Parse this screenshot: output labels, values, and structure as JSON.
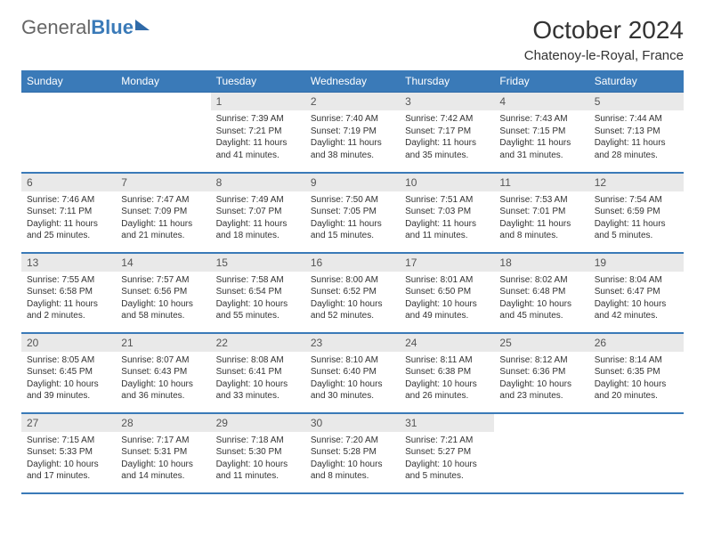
{
  "brand": {
    "word1": "General",
    "word2": "Blue"
  },
  "title": "October 2024",
  "location": "Chatenoy-le-Royal, France",
  "colors": {
    "header_bg": "#3a7ab8",
    "header_text": "#ffffff",
    "daynum_bg": "#e9e9e9",
    "row_border": "#3a7ab8",
    "text": "#333333",
    "background": "#ffffff"
  },
  "fonts": {
    "title_size_pt": 21,
    "location_size_pt": 11,
    "header_size_pt": 9,
    "body_size_pt": 7.5
  },
  "day_headers": [
    "Sunday",
    "Monday",
    "Tuesday",
    "Wednesday",
    "Thursday",
    "Friday",
    "Saturday"
  ],
  "weeks": [
    [
      {
        "n": "",
        "empty": true
      },
      {
        "n": "",
        "empty": true
      },
      {
        "n": "1",
        "sunrise": "7:39 AM",
        "sunset": "7:21 PM",
        "daylight": "11 hours and 41 minutes."
      },
      {
        "n": "2",
        "sunrise": "7:40 AM",
        "sunset": "7:19 PM",
        "daylight": "11 hours and 38 minutes."
      },
      {
        "n": "3",
        "sunrise": "7:42 AM",
        "sunset": "7:17 PM",
        "daylight": "11 hours and 35 minutes."
      },
      {
        "n": "4",
        "sunrise": "7:43 AM",
        "sunset": "7:15 PM",
        "daylight": "11 hours and 31 minutes."
      },
      {
        "n": "5",
        "sunrise": "7:44 AM",
        "sunset": "7:13 PM",
        "daylight": "11 hours and 28 minutes."
      }
    ],
    [
      {
        "n": "6",
        "sunrise": "7:46 AM",
        "sunset": "7:11 PM",
        "daylight": "11 hours and 25 minutes."
      },
      {
        "n": "7",
        "sunrise": "7:47 AM",
        "sunset": "7:09 PM",
        "daylight": "11 hours and 21 minutes."
      },
      {
        "n": "8",
        "sunrise": "7:49 AM",
        "sunset": "7:07 PM",
        "daylight": "11 hours and 18 minutes."
      },
      {
        "n": "9",
        "sunrise": "7:50 AM",
        "sunset": "7:05 PM",
        "daylight": "11 hours and 15 minutes."
      },
      {
        "n": "10",
        "sunrise": "7:51 AM",
        "sunset": "7:03 PM",
        "daylight": "11 hours and 11 minutes."
      },
      {
        "n": "11",
        "sunrise": "7:53 AM",
        "sunset": "7:01 PM",
        "daylight": "11 hours and 8 minutes."
      },
      {
        "n": "12",
        "sunrise": "7:54 AM",
        "sunset": "6:59 PM",
        "daylight": "11 hours and 5 minutes."
      }
    ],
    [
      {
        "n": "13",
        "sunrise": "7:55 AM",
        "sunset": "6:58 PM",
        "daylight": "11 hours and 2 minutes."
      },
      {
        "n": "14",
        "sunrise": "7:57 AM",
        "sunset": "6:56 PM",
        "daylight": "10 hours and 58 minutes."
      },
      {
        "n": "15",
        "sunrise": "7:58 AM",
        "sunset": "6:54 PM",
        "daylight": "10 hours and 55 minutes."
      },
      {
        "n": "16",
        "sunrise": "8:00 AM",
        "sunset": "6:52 PM",
        "daylight": "10 hours and 52 minutes."
      },
      {
        "n": "17",
        "sunrise": "8:01 AM",
        "sunset": "6:50 PM",
        "daylight": "10 hours and 49 minutes."
      },
      {
        "n": "18",
        "sunrise": "8:02 AM",
        "sunset": "6:48 PM",
        "daylight": "10 hours and 45 minutes."
      },
      {
        "n": "19",
        "sunrise": "8:04 AM",
        "sunset": "6:47 PM",
        "daylight": "10 hours and 42 minutes."
      }
    ],
    [
      {
        "n": "20",
        "sunrise": "8:05 AM",
        "sunset": "6:45 PM",
        "daylight": "10 hours and 39 minutes."
      },
      {
        "n": "21",
        "sunrise": "8:07 AM",
        "sunset": "6:43 PM",
        "daylight": "10 hours and 36 minutes."
      },
      {
        "n": "22",
        "sunrise": "8:08 AM",
        "sunset": "6:41 PM",
        "daylight": "10 hours and 33 minutes."
      },
      {
        "n": "23",
        "sunrise": "8:10 AM",
        "sunset": "6:40 PM",
        "daylight": "10 hours and 30 minutes."
      },
      {
        "n": "24",
        "sunrise": "8:11 AM",
        "sunset": "6:38 PM",
        "daylight": "10 hours and 26 minutes."
      },
      {
        "n": "25",
        "sunrise": "8:12 AM",
        "sunset": "6:36 PM",
        "daylight": "10 hours and 23 minutes."
      },
      {
        "n": "26",
        "sunrise": "8:14 AM",
        "sunset": "6:35 PM",
        "daylight": "10 hours and 20 minutes."
      }
    ],
    [
      {
        "n": "27",
        "sunrise": "7:15 AM",
        "sunset": "5:33 PM",
        "daylight": "10 hours and 17 minutes."
      },
      {
        "n": "28",
        "sunrise": "7:17 AM",
        "sunset": "5:31 PM",
        "daylight": "10 hours and 14 minutes."
      },
      {
        "n": "29",
        "sunrise": "7:18 AM",
        "sunset": "5:30 PM",
        "daylight": "10 hours and 11 minutes."
      },
      {
        "n": "30",
        "sunrise": "7:20 AM",
        "sunset": "5:28 PM",
        "daylight": "10 hours and 8 minutes."
      },
      {
        "n": "31",
        "sunrise": "7:21 AM",
        "sunset": "5:27 PM",
        "daylight": "10 hours and 5 minutes."
      },
      {
        "n": "",
        "empty": true
      },
      {
        "n": "",
        "empty": true
      }
    ]
  ],
  "labels": {
    "sunrise": "Sunrise:",
    "sunset": "Sunset:",
    "daylight": "Daylight:"
  }
}
